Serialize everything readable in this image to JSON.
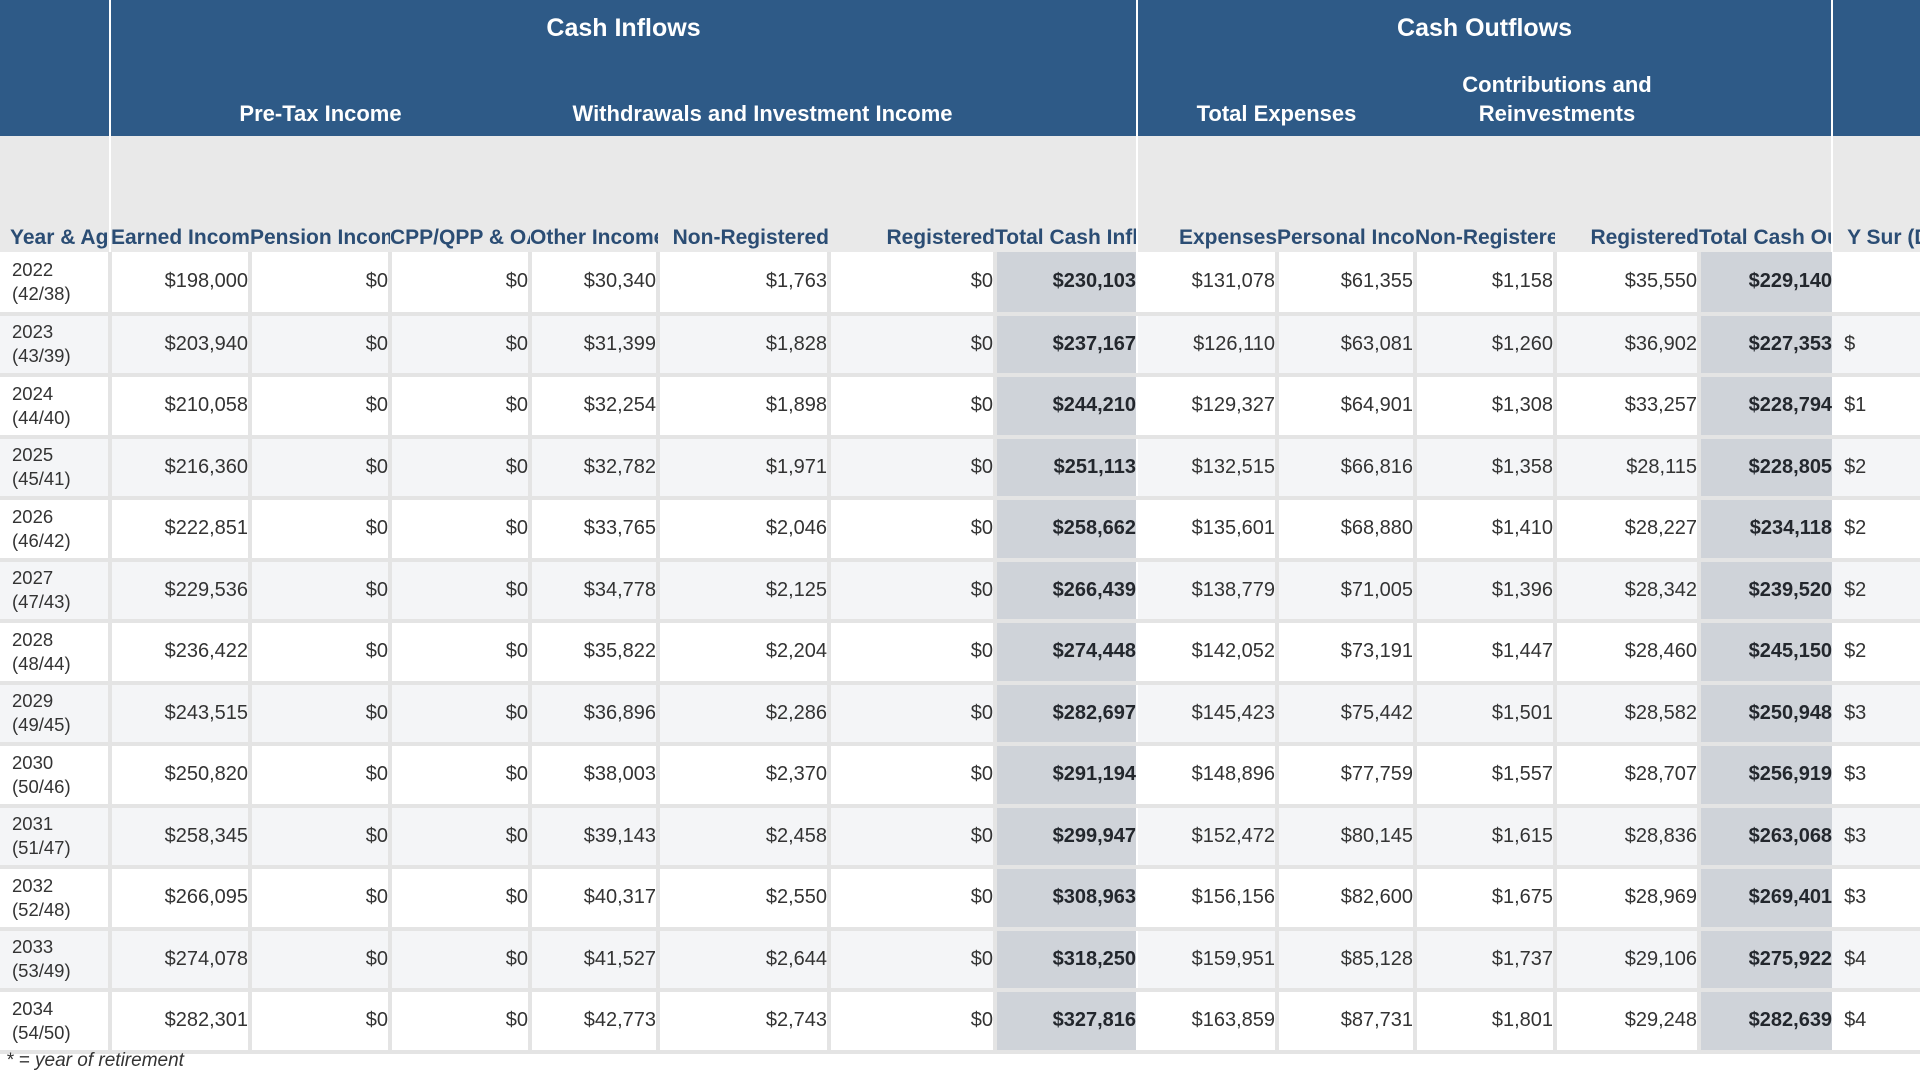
{
  "header": {
    "cash_inflows": "Cash Inflows",
    "cash_outflows": "Cash Outflows",
    "pre_tax_income": "Pre-Tax Income",
    "withdrawals": "Withdrawals and Investment Income",
    "total_expenses": "Total Expenses",
    "contributions": "Contributions and Reinvestments"
  },
  "columns": {
    "year_age": "Year & Age",
    "earned_income": "Earned Income",
    "pension_income": "Pension Income",
    "cpp": "CPP/QPP & OAS",
    "other_incomes": "Other Incomes",
    "non_registered_in": "Non-Registered",
    "registered_in": "Registered",
    "total_inflows": "Total Cash Inflows",
    "expenses": "Expenses",
    "personal_income_tax": "Personal Income Tax",
    "non_registered_out": "Non-Registered",
    "registered_out": "Registered",
    "total_outflows": "Total Cash Outflows",
    "cut_column": "Y Sur (De"
  },
  "rows": [
    {
      "year": "2022",
      "age": "(42/38)",
      "earned": "$198,000",
      "pension": "$0",
      "cpp": "$0",
      "other": "$30,340",
      "nonreg_in": "$1,763",
      "reg_in": "$0",
      "total_in": "$230,103",
      "expenses": "$131,078",
      "tax": "$61,355",
      "nonreg_out": "$1,158",
      "reg_out": "$35,550",
      "total_out": "$229,140",
      "cut": ""
    },
    {
      "year": "2023",
      "age": "(43/39)",
      "earned": "$203,940",
      "pension": "$0",
      "cpp": "$0",
      "other": "$31,399",
      "nonreg_in": "$1,828",
      "reg_in": "$0",
      "total_in": "$237,167",
      "expenses": "$126,110",
      "tax": "$63,081",
      "nonreg_out": "$1,260",
      "reg_out": "$36,902",
      "total_out": "$227,353",
      "cut": "$"
    },
    {
      "year": "2024",
      "age": "(44/40)",
      "earned": "$210,058",
      "pension": "$0",
      "cpp": "$0",
      "other": "$32,254",
      "nonreg_in": "$1,898",
      "reg_in": "$0",
      "total_in": "$244,210",
      "expenses": "$129,327",
      "tax": "$64,901",
      "nonreg_out": "$1,308",
      "reg_out": "$33,257",
      "total_out": "$228,794",
      "cut": "$1"
    },
    {
      "year": "2025",
      "age": "(45/41)",
      "earned": "$216,360",
      "pension": "$0",
      "cpp": "$0",
      "other": "$32,782",
      "nonreg_in": "$1,971",
      "reg_in": "$0",
      "total_in": "$251,113",
      "expenses": "$132,515",
      "tax": "$66,816",
      "nonreg_out": "$1,358",
      "reg_out": "$28,115",
      "total_out": "$228,805",
      "cut": "$2"
    },
    {
      "year": "2026",
      "age": "(46/42)",
      "earned": "$222,851",
      "pension": "$0",
      "cpp": "$0",
      "other": "$33,765",
      "nonreg_in": "$2,046",
      "reg_in": "$0",
      "total_in": "$258,662",
      "expenses": "$135,601",
      "tax": "$68,880",
      "nonreg_out": "$1,410",
      "reg_out": "$28,227",
      "total_out": "$234,118",
      "cut": "$2"
    },
    {
      "year": "2027",
      "age": "(47/43)",
      "earned": "$229,536",
      "pension": "$0",
      "cpp": "$0",
      "other": "$34,778",
      "nonreg_in": "$2,125",
      "reg_in": "$0",
      "total_in": "$266,439",
      "expenses": "$138,779",
      "tax": "$71,005",
      "nonreg_out": "$1,396",
      "reg_out": "$28,342",
      "total_out": "$239,520",
      "cut": "$2"
    },
    {
      "year": "2028",
      "age": "(48/44)",
      "earned": "$236,422",
      "pension": "$0",
      "cpp": "$0",
      "other": "$35,822",
      "nonreg_in": "$2,204",
      "reg_in": "$0",
      "total_in": "$274,448",
      "expenses": "$142,052",
      "tax": "$73,191",
      "nonreg_out": "$1,447",
      "reg_out": "$28,460",
      "total_out": "$245,150",
      "cut": "$2"
    },
    {
      "year": "2029",
      "age": "(49/45)",
      "earned": "$243,515",
      "pension": "$0",
      "cpp": "$0",
      "other": "$36,896",
      "nonreg_in": "$2,286",
      "reg_in": "$0",
      "total_in": "$282,697",
      "expenses": "$145,423",
      "tax": "$75,442",
      "nonreg_out": "$1,501",
      "reg_out": "$28,582",
      "total_out": "$250,948",
      "cut": "$3"
    },
    {
      "year": "2030",
      "age": "(50/46)",
      "earned": "$250,820",
      "pension": "$0",
      "cpp": "$0",
      "other": "$38,003",
      "nonreg_in": "$2,370",
      "reg_in": "$0",
      "total_in": "$291,194",
      "expenses": "$148,896",
      "tax": "$77,759",
      "nonreg_out": "$1,557",
      "reg_out": "$28,707",
      "total_out": "$256,919",
      "cut": "$3"
    },
    {
      "year": "2031",
      "age": "(51/47)",
      "earned": "$258,345",
      "pension": "$0",
      "cpp": "$0",
      "other": "$39,143",
      "nonreg_in": "$2,458",
      "reg_in": "$0",
      "total_in": "$299,947",
      "expenses": "$152,472",
      "tax": "$80,145",
      "nonreg_out": "$1,615",
      "reg_out": "$28,836",
      "total_out": "$263,068",
      "cut": "$3"
    },
    {
      "year": "2032",
      "age": "(52/48)",
      "earned": "$266,095",
      "pension": "$0",
      "cpp": "$0",
      "other": "$40,317",
      "nonreg_in": "$2,550",
      "reg_in": "$0",
      "total_in": "$308,963",
      "expenses": "$156,156",
      "tax": "$82,600",
      "nonreg_out": "$1,675",
      "reg_out": "$28,969",
      "total_out": "$269,401",
      "cut": "$3"
    },
    {
      "year": "2033",
      "age": "(53/49)",
      "earned": "$274,078",
      "pension": "$0",
      "cpp": "$0",
      "other": "$41,527",
      "nonreg_in": "$2,644",
      "reg_in": "$0",
      "total_in": "$318,250",
      "expenses": "$159,951",
      "tax": "$85,128",
      "nonreg_out": "$1,737",
      "reg_out": "$29,106",
      "total_out": "$275,922",
      "cut": "$4"
    },
    {
      "year": "2034",
      "age": "(54/50)",
      "earned": "$282,301",
      "pension": "$0",
      "cpp": "$0",
      "other": "$42,773",
      "nonreg_in": "$2,743",
      "reg_in": "$0",
      "total_in": "$327,816",
      "expenses": "$163,859",
      "tax": "$87,731",
      "nonreg_out": "$1,801",
      "reg_out": "$29,248",
      "total_out": "$282,639",
      "cut": "$4"
    }
  ],
  "footnote": "* = year of retirement"
}
